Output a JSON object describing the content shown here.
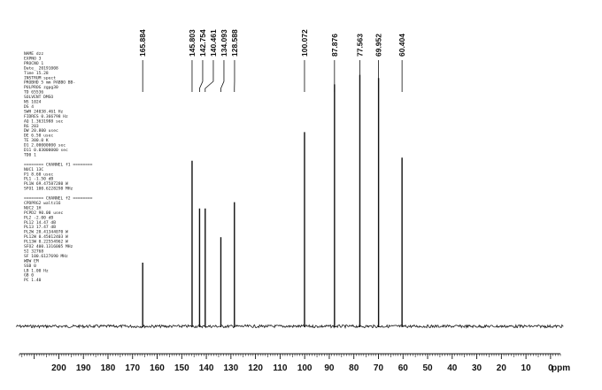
{
  "chart_data": {
    "type": "line",
    "title": "",
    "xlabel": "ppm",
    "ylabel": "",
    "xlim": [
      216,
      -4
    ],
    "x_ticks": [
      "200",
      "190",
      "180",
      "170",
      "160",
      "150",
      "140",
      "130",
      "120",
      "110",
      "100",
      "90",
      "80",
      "70",
      "60",
      "50",
      "40",
      "30",
      "20",
      "10",
      "0"
    ],
    "grid": false,
    "peak_labels": [
      "165.884",
      "145.803",
      "142.754",
      "140.461",
      "134.093",
      "128.588",
      "100.072",
      "87.876",
      "77.563",
      "69.952",
      "60.404"
    ],
    "peaks": [
      {
        "ppm": 165.884,
        "intensity": 0.2
      },
      {
        "ppm": 145.803,
        "intensity": 0.52
      },
      {
        "ppm": 142.754,
        "intensity": 0.37
      },
      {
        "ppm": 140.461,
        "intensity": 0.37
      },
      {
        "ppm": 134.093,
        "intensity": 0.28
      },
      {
        "ppm": 128.588,
        "intensity": 0.39
      },
      {
        "ppm": 100.072,
        "intensity": 0.61
      },
      {
        "ppm": 87.876,
        "intensity": 0.76
      },
      {
        "ppm": 77.563,
        "intensity": 0.79
      },
      {
        "ppm": 69.952,
        "intensity": 0.78
      },
      {
        "ppm": 60.404,
        "intensity": 0.53
      }
    ],
    "parameters": [
      "NAME            dzz",
      "EXPNO             3",
      "PROCNO            1",
      "Date_      20191008",
      "Time          15.28",
      "INSTRUM       spect",
      "PROBHD  5 mm PABBO BB-",
      "PULPROG      zgpg30",
      "TD            65536",
      "SOLVENT         DMSO",
      "NS             1024",
      "DS                4",
      "SWH       24038.461 Hz",
      "FIDRES     0.366798 Hz",
      "AQ        1.3631988 sec",
      "RG              203",
      "DW           20.800 usec",
      "DE             6.50 usec",
      "TE            300.0 K",
      "D1       2.00000000 sec",
      "D11      0.03000000 sec",
      "TD0               1",
      "",
      "======== CHANNEL f1 ========",
      "NUC1            13C",
      "P1             8.60 usec",
      "PL1           -1.50 dB",
      "PL1W    69.47587280 W",
      "SFO1     100.6228298 MHz",
      "",
      "======== CHANNEL f2 ========",
      "CPDPRG2      waltz16",
      "NUC2              1H",
      "PCPD2         90.00 usec",
      "PL2           -2.00 dB",
      "PL12          14.47 dB",
      "PL13          17.47 dB",
      "PL2W    20.41344070 W",
      "PL12W    0.45012403 W",
      "PL13W    0.22554962 W",
      "SFO2     400.1316005 MHz",
      "SI            32768",
      "SF       100.6127690 MHz",
      "WDW              EM",
      "SSB               0",
      "LB             1.00 Hz",
      "GB                0",
      "PC             1.40"
    ]
  }
}
